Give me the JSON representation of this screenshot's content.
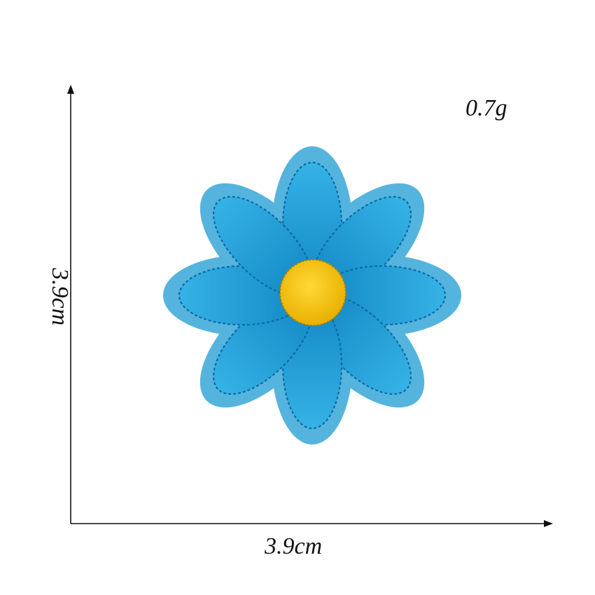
{
  "product": {
    "weight_label": "0.7g",
    "width_label": "3.9cm",
    "height_label": "3.9cm"
  },
  "colors": {
    "background": "#ffffff",
    "axis": "#111111",
    "patch_base": "#4fb0dc",
    "petal": "#1a98cf",
    "petal_stitch": "#0b5f99",
    "center": "#f5c400",
    "center_stitch": "#b88a00"
  },
  "icons": {
    "vertical_arrow": "arrow-up-icon",
    "horizontal_arrow": "arrow-right-icon",
    "flower": "daisy-patch-icon"
  }
}
